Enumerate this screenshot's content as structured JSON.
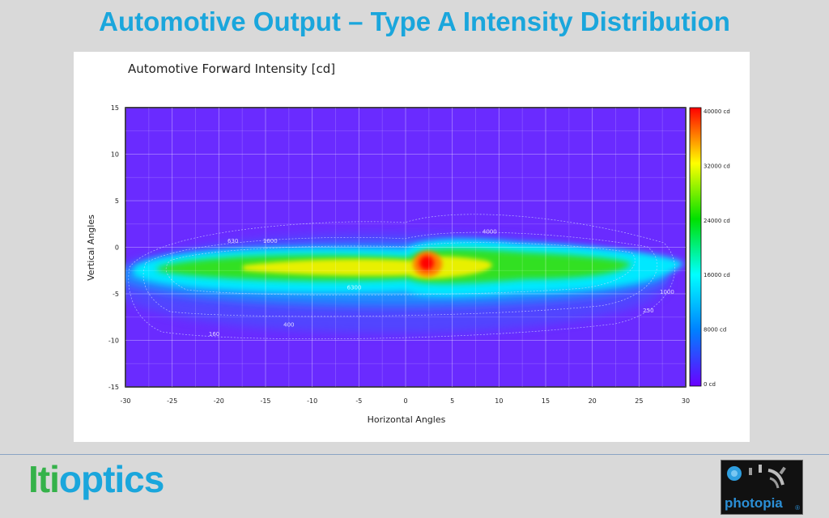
{
  "slide": {
    "title": "Automotive Output – Type A Intensity Distribution",
    "brand_part1": "Iti",
    "brand_part2": "optics",
    "logo_text": "photopia",
    "logo_reg": "®"
  },
  "chart_data": {
    "type": "heatmap",
    "title": "Automotive Forward Intensity [cd]",
    "xlabel": "Horizontal Angles",
    "ylabel": "Vertical Angles",
    "xlim": [
      -30,
      30
    ],
    "ylim": [
      -15,
      15
    ],
    "x_ticks": [
      "-30",
      "-25",
      "-20",
      "-15",
      "-10",
      "-5",
      "0",
      "5",
      "10",
      "15",
      "20",
      "25",
      "30"
    ],
    "y_ticks": [
      "15",
      "10",
      "5",
      "0",
      "-5",
      "-10",
      "-15"
    ],
    "grid": true,
    "colorbar": {
      "range": [
        0,
        40000
      ],
      "labels": [
        "40000 cd",
        "32000 cd",
        "24000 cd",
        "16000 cd",
        "8000 cd",
        "0 cd"
      ],
      "colors": [
        "#ff0000",
        "#ffff00",
        "#00e000",
        "#00ffff",
        "#0080ff",
        "#6a00ff"
      ]
    },
    "background_color": "#6a2bff",
    "contour_labels": [
      {
        "text": "630",
        "x": -18.5,
        "y": 0.5
      },
      {
        "text": "1600",
        "x": -14.5,
        "y": 0.5
      },
      {
        "text": "4000",
        "x": 9,
        "y": 1.5
      },
      {
        "text": "6300",
        "x": -5.5,
        "y": -4.5
      },
      {
        "text": "1000",
        "x": 28,
        "y": -5
      },
      {
        "text": "250",
        "x": 26,
        "y": -7
      },
      {
        "text": "400",
        "x": -12.5,
        "y": -8.5
      },
      {
        "text": "160",
        "x": -20.5,
        "y": -9.5
      }
    ],
    "hotspot": {
      "x": 2,
      "y": -1.5,
      "peak": 40000
    }
  }
}
